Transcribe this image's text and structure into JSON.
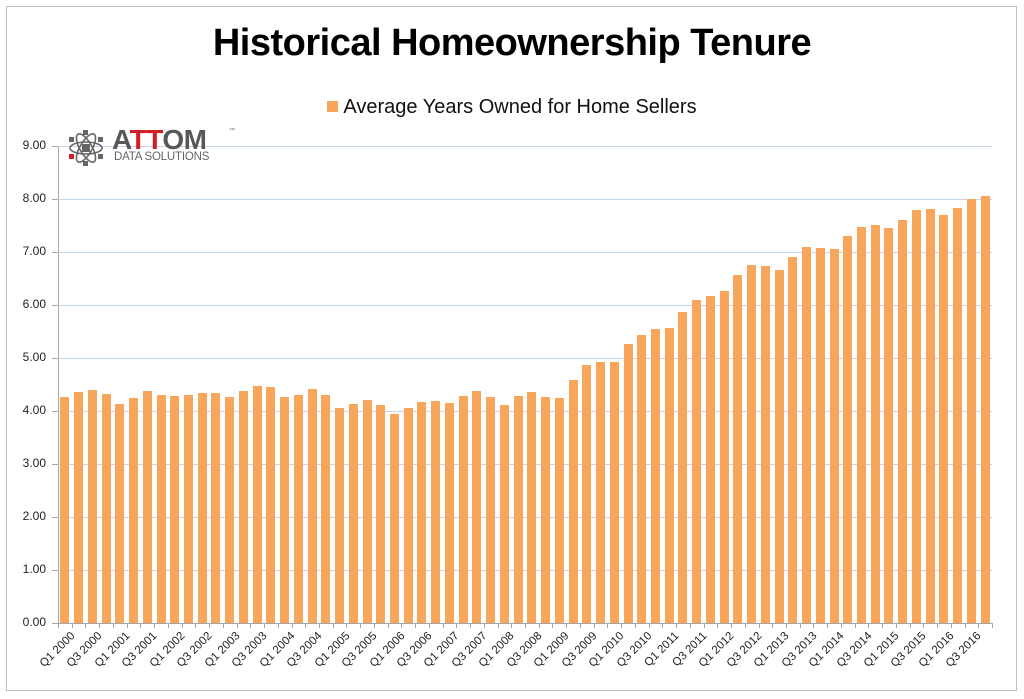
{
  "chart_data": {
    "type": "bar",
    "title": "Historical Homeownership Tenure",
    "legend": [
      "Average Years Owned for Home Sellers"
    ],
    "legend_position": "top",
    "xlabel": "",
    "ylabel": "",
    "ylim": [
      0,
      9
    ],
    "yticks": [
      "0.00",
      "1.00",
      "2.00",
      "3.00",
      "4.00",
      "5.00",
      "6.00",
      "7.00",
      "8.00",
      "9.00"
    ],
    "grid": true,
    "categories": [
      "Q1 2000",
      "Q2 2000",
      "Q3 2000",
      "Q4 2000",
      "Q1 2001",
      "Q2 2001",
      "Q3 2001",
      "Q4 2001",
      "Q1 2002",
      "Q2 2002",
      "Q3 2002",
      "Q4 2002",
      "Q1 2003",
      "Q2 2003",
      "Q3 2003",
      "Q4 2003",
      "Q1 2004",
      "Q2 2004",
      "Q3 2004",
      "Q4 2004",
      "Q1 2005",
      "Q2 2005",
      "Q3 2005",
      "Q4 2005",
      "Q1 2006",
      "Q2 2006",
      "Q3 2006",
      "Q4 2006",
      "Q1 2007",
      "Q2 2007",
      "Q3 2007",
      "Q4 2007",
      "Q1 2008",
      "Q2 2008",
      "Q3 2008",
      "Q4 2008",
      "Q1 2009",
      "Q2 2009",
      "Q3 2009",
      "Q4 2009",
      "Q1 2010",
      "Q2 2010",
      "Q3 2010",
      "Q4 2010",
      "Q1 2011",
      "Q2 2011",
      "Q3 2011",
      "Q4 2011",
      "Q1 2012",
      "Q2 2012",
      "Q3 2012",
      "Q4 2012",
      "Q1 2013",
      "Q2 2013",
      "Q3 2013",
      "Q4 2013",
      "Q1 2014",
      "Q2 2014",
      "Q3 2014",
      "Q4 2014",
      "Q1 2015",
      "Q2 2015",
      "Q3 2015",
      "Q4 2015",
      "Q1 2016",
      "Q2 2016",
      "Q3 2016",
      "Q4 2016"
    ],
    "visible_xtick_labels": [
      "Q1 2000",
      "Q3 2000",
      "Q1 2001",
      "Q3 2001",
      "Q1 2002",
      "Q3 2002",
      "Q1 2003",
      "Q3 2003",
      "Q1 2004",
      "Q3 2004",
      "Q1 2005",
      "Q3 2005",
      "Q1 2006",
      "Q3 2006",
      "Q1 2007",
      "Q3 2007",
      "Q1 2008",
      "Q3 2008",
      "Q1 2009",
      "Q3 2009",
      "Q1 2010",
      "Q3 2010",
      "Q1 2011",
      "Q3 2011",
      "Q1 2012",
      "Q3 2012",
      "Q1 2013",
      "Q3 2013",
      "Q1 2014",
      "Q3 2014",
      "Q1 2015",
      "Q3 2015",
      "Q1 2016",
      "Q3 2016"
    ],
    "series": [
      {
        "name": "Average Years Owned for Home Sellers",
        "color": "#f8a65c",
        "values": [
          4.27,
          4.36,
          4.4,
          4.32,
          4.14,
          4.24,
          4.37,
          4.31,
          4.28,
          4.31,
          4.34,
          4.34,
          4.27,
          4.38,
          4.48,
          4.45,
          4.27,
          4.31,
          4.42,
          4.31,
          4.06,
          4.13,
          4.2,
          4.11,
          3.94,
          4.05,
          4.17,
          4.19,
          4.15,
          4.28,
          4.38,
          4.27,
          4.11,
          4.28,
          4.36,
          4.26,
          4.24,
          4.58,
          4.87,
          4.92,
          4.93,
          5.26,
          5.43,
          5.55,
          5.57,
          5.87,
          6.09,
          6.17,
          6.27,
          6.57,
          6.75,
          6.74,
          6.66,
          6.91,
          7.09,
          7.08,
          7.05,
          7.3,
          7.47,
          7.51,
          7.45,
          7.6,
          7.79,
          7.81,
          7.7,
          7.83,
          8.0,
          8.06
        ]
      }
    ]
  },
  "logo": {
    "word_part1": "A",
    "word_red": "TT",
    "word_part2": "OM",
    "tm": "™",
    "subtitle": "DATA SOLUTIONS"
  },
  "colors": {
    "bar": "#f8a65c",
    "gridline": "#c6d5ee",
    "axis": "#a6a6a6",
    "logo_red": "#d02027",
    "logo_gray": "#575757"
  }
}
